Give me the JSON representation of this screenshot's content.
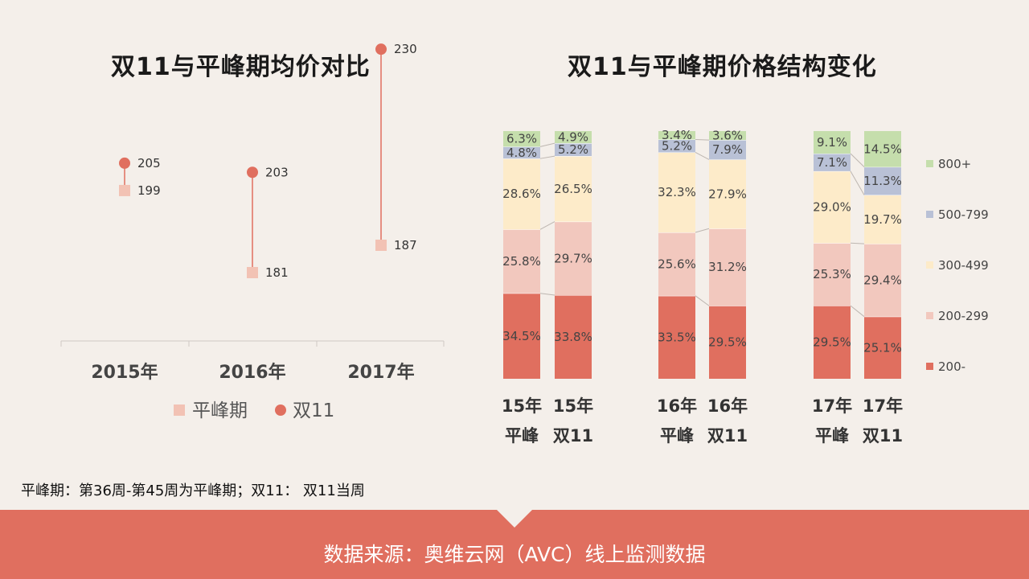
{
  "left_title": "双11与平峰期均价对比",
  "right_title": "双11与平峰期价格结构变化",
  "note": "平峰期：第36周-第45周为平峰期；双11：    双11当周",
  "footer": "数据来源：奥维云网（AVC）线上监测数据",
  "colors": {
    "background": "#f4efea",
    "footer": "#e06f5f",
    "dot": "#e06f5f",
    "square": "#f2c2b4",
    "seg_200_minus": "#e06f5f",
    "seg_200_299": "#f2c8be",
    "seg_300_499": "#fdebc9",
    "seg_500_799": "#b9c1d6",
    "seg_800_plus": "#c5deac"
  },
  "chart_data": [
    {
      "type": "scatter",
      "title": "双11与平峰期均价对比",
      "categories": [
        "2015年",
        "2016年",
        "2017年"
      ],
      "series": [
        {
          "name": "平峰期",
          "values": [
            199,
            181,
            187
          ]
        },
        {
          "name": "双11",
          "values": [
            205,
            203,
            230
          ]
        }
      ],
      "legend": "bottom",
      "grid": false
    },
    {
      "type": "bar",
      "stacked": true,
      "percent": true,
      "title": "双11与平峰期价格结构变化",
      "categories": [
        {
          "year": "15年",
          "period": "平峰"
        },
        {
          "year": "15年",
          "period": "双11"
        },
        {
          "year": "16年",
          "period": "平峰"
        },
        {
          "year": "16年",
          "period": "双11"
        },
        {
          "year": "17年",
          "period": "平峰"
        },
        {
          "year": "17年",
          "period": "双11"
        }
      ],
      "series": [
        {
          "name": "200-",
          "values": [
            34.5,
            33.8,
            33.5,
            29.5,
            29.5,
            25.1
          ]
        },
        {
          "name": "200-299",
          "values": [
            25.8,
            29.7,
            25.6,
            31.2,
            25.3,
            29.4
          ]
        },
        {
          "name": "300-499",
          "values": [
            28.6,
            26.5,
            32.3,
            27.9,
            29.0,
            19.7
          ]
        },
        {
          "name": "500-799",
          "values": [
            4.8,
            5.2,
            5.2,
            7.9,
            7.1,
            11.3
          ]
        },
        {
          "name": "800+",
          "values": [
            6.3,
            4.9,
            3.4,
            3.6,
            9.1,
            14.5
          ]
        }
      ],
      "legend": "right",
      "grid": false
    }
  ]
}
